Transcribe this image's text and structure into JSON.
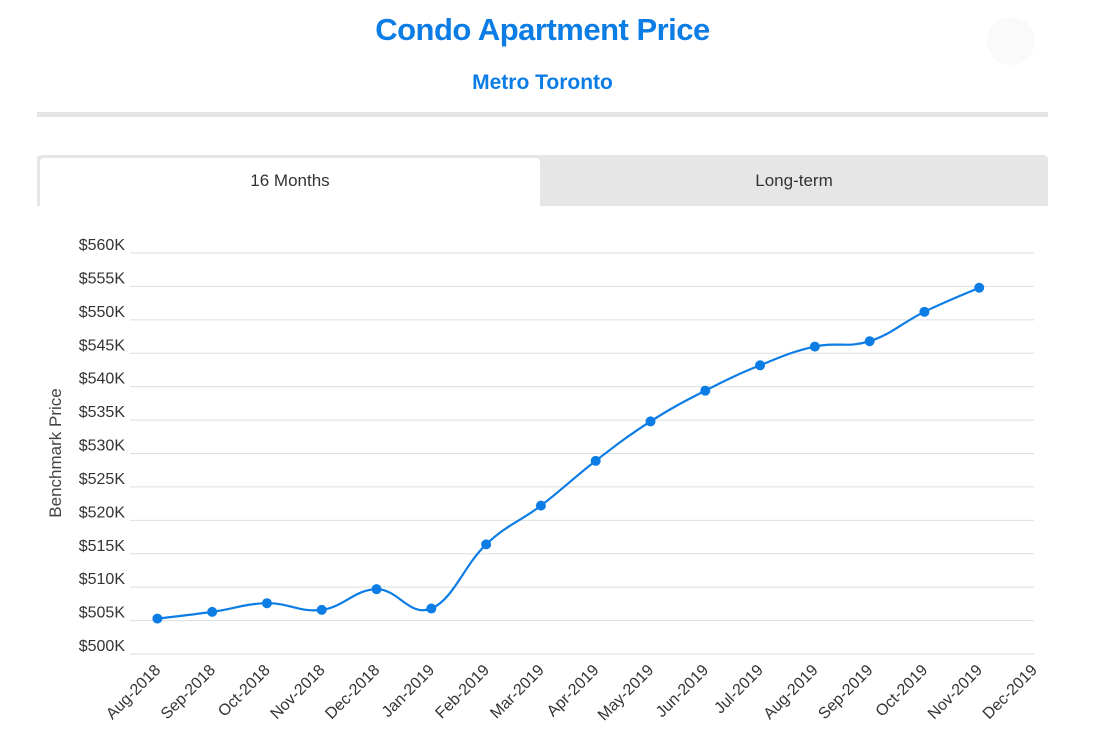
{
  "header": {
    "title": "Condo Apartment Price",
    "subtitle": "Metro Toronto"
  },
  "tabs": [
    {
      "label": "16 Months",
      "active": true
    },
    {
      "label": "Long-term",
      "active": false
    }
  ],
  "colors": {
    "accent": "#0d7de6",
    "divider": "#e4e4e4",
    "tab_bg": "#e6e6e6",
    "grid": "#dedede"
  },
  "chart_data": {
    "type": "line",
    "title": "",
    "xlabel": "",
    "ylabel": "Benchmark Price",
    "categories": [
      "Aug-2018",
      "Sep-2018",
      "Oct-2018",
      "Nov-2018",
      "Dec-2018",
      "Jan-2019",
      "Feb-2019",
      "Mar-2019",
      "Apr-2019",
      "May-2019",
      "Jun-2019",
      "Jul-2019",
      "Aug-2019",
      "Sep-2019",
      "Oct-2019",
      "Nov-2019",
      "Dec-2019"
    ],
    "series": [
      {
        "values": [
          505.3,
          506.3,
          507.6,
          506.6,
          509.7,
          506.8,
          516.4,
          522.2,
          528.9,
          534.8,
          539.4,
          543.2,
          546.0,
          546.8,
          551.2,
          554.8,
          null
        ]
      }
    ],
    "y_ticks": [
      "$500K",
      "$505K",
      "$510K",
      "$515K",
      "$520K",
      "$525K",
      "$530K",
      "$535K",
      "$540K",
      "$545K",
      "$550K",
      "$555K",
      "$560K"
    ],
    "ylim": [
      500,
      560
    ],
    "y_unit": "thousand USD",
    "grid": true,
    "legend": "none",
    "smooth": true
  }
}
